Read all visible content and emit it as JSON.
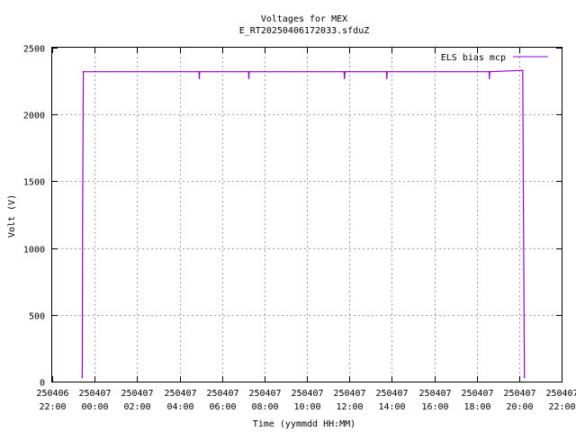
{
  "chart_data": {
    "type": "line",
    "title": "Voltages for MEX",
    "subtitle": "E_RT20250406172033.sfduZ",
    "xlabel": "Time (yymmdd HH:MM)",
    "ylabel": "Volt (V)",
    "xlim": [
      "2025-04-06 22:00",
      "2025-04-07 22:00"
    ],
    "ylim": [
      0,
      2500
    ],
    "grid": true,
    "legend_position": "top-right",
    "x_ticks": [
      {
        "date": "250406",
        "time": "22:00"
      },
      {
        "date": "250407",
        "time": "00:00"
      },
      {
        "date": "250407",
        "time": "02:00"
      },
      {
        "date": "250407",
        "time": "04:00"
      },
      {
        "date": "250407",
        "time": "06:00"
      },
      {
        "date": "250407",
        "time": "08:00"
      },
      {
        "date": "250407",
        "time": "10:00"
      },
      {
        "date": "250407",
        "time": "12:00"
      },
      {
        "date": "250407",
        "time": "14:00"
      },
      {
        "date": "250407",
        "time": "16:00"
      },
      {
        "date": "250407",
        "time": "18:00"
      },
      {
        "date": "250407",
        "time": "20:00"
      },
      {
        "date": "250407",
        "time": "22:00"
      }
    ],
    "y_ticks": [
      "0",
      "500",
      "1000",
      "1500",
      "2000",
      "2500"
    ],
    "series": [
      {
        "name": "ELS bias mcp",
        "color": "#9400d3",
        "points": [
          [
            "2025-04-06 23:25",
            30
          ],
          [
            "2025-04-06 23:26",
            1280
          ],
          [
            "2025-04-06 23:28",
            2320
          ],
          [
            "2025-04-07 04:55",
            2320
          ],
          [
            "2025-04-07 04:56",
            2270
          ],
          [
            "2025-04-07 04:57",
            2320
          ],
          [
            "2025-04-07 07:15",
            2320
          ],
          [
            "2025-04-07 07:16",
            2270
          ],
          [
            "2025-04-07 07:17",
            2320
          ],
          [
            "2025-04-07 11:45",
            2320
          ],
          [
            "2025-04-07 11:46",
            2270
          ],
          [
            "2025-04-07 11:48",
            2320
          ],
          [
            "2025-04-07 13:45",
            2320
          ],
          [
            "2025-04-07 13:46",
            2270
          ],
          [
            "2025-04-07 13:47",
            2320
          ],
          [
            "2025-04-07 18:35",
            2320
          ],
          [
            "2025-04-07 18:36",
            2270
          ],
          [
            "2025-04-07 18:37",
            2320
          ],
          [
            "2025-04-07 20:10",
            2330
          ],
          [
            "2025-04-07 20:12",
            1290
          ],
          [
            "2025-04-07 20:15",
            30
          ]
        ]
      }
    ]
  }
}
